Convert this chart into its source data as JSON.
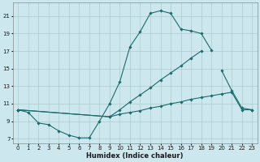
{
  "xlabel": "Humidex (Indice chaleur)",
  "bg_color": "#cce8ee",
  "grid_color": "#aacccc",
  "line_color": "#1a6b6b",
  "xlim": [
    -0.5,
    23.5
  ],
  "ylim": [
    6.5,
    22.5
  ],
  "xticks": [
    0,
    1,
    2,
    3,
    4,
    5,
    6,
    7,
    8,
    9,
    10,
    11,
    12,
    13,
    14,
    15,
    16,
    17,
    18,
    19,
    20,
    21,
    22,
    23
  ],
  "yticks": [
    7,
    9,
    11,
    13,
    15,
    17,
    19,
    21
  ],
  "series": [
    {
      "x": [
        0,
        1,
        2,
        3,
        4,
        5,
        6,
        7,
        8,
        9,
        10,
        11,
        12,
        13,
        14,
        15,
        16,
        17,
        18,
        19
      ],
      "y": [
        10.3,
        10.0,
        8.8,
        8.6,
        7.9,
        7.4,
        7.1,
        7.1,
        9.0,
        11.0,
        13.5,
        17.5,
        19.2,
        21.3,
        21.6,
        21.3,
        19.5,
        19.3,
        19.0,
        17.1
      ]
    },
    {
      "x": [
        0,
        9,
        10,
        11,
        12,
        13,
        14,
        15,
        16,
        17,
        18,
        19,
        20,
        21,
        22,
        23
      ],
      "y": [
        10.3,
        9.5,
        9.8,
        10.0,
        10.2,
        10.5,
        10.7,
        11.0,
        11.2,
        11.5,
        11.7,
        11.9,
        12.1,
        12.3,
        10.3,
        10.3
      ]
    },
    {
      "x": [
        0,
        9,
        10,
        11,
        12,
        13,
        14,
        15,
        16,
        17,
        18,
        19,
        20,
        21,
        22,
        23
      ],
      "y": [
        10.3,
        9.5,
        10.3,
        11.2,
        12.0,
        12.8,
        13.7,
        14.5,
        15.3,
        16.2,
        17.0,
        null,
        14.8,
        12.5,
        10.5,
        10.3
      ]
    }
  ]
}
